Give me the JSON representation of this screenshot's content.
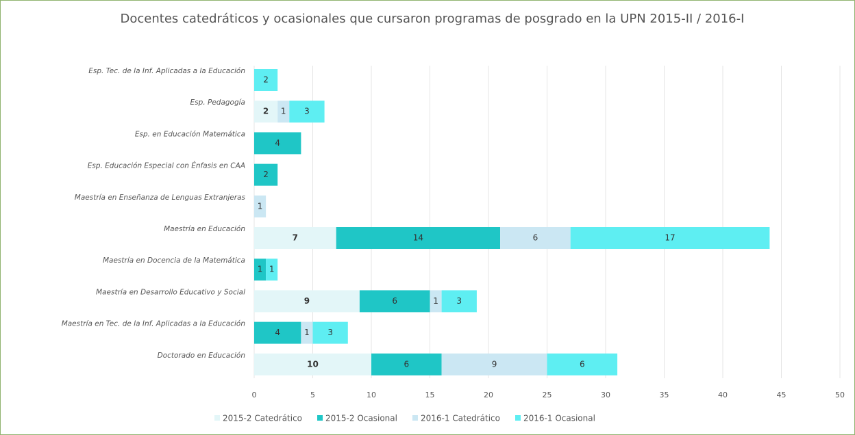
{
  "chart_data": {
    "type": "stacked-bar-horizontal",
    "title": "Docentes catedráticos y ocasionales que cursaron programas de posgrado en la UPN 2015-II / 2016-I",
    "categories": [
      "Esp. Tec. de la Inf. Aplicadas a la Educación",
      "Esp. Pedagogía",
      "Esp. en Educación Matemática",
      "Esp. Educación Especial con Énfasis en CAA",
      "Maestría en Enseñanza de Lenguas Extranjeras",
      "Maestría en Educación",
      "Maestría en Docencia de la Matemática",
      "Maestría en Desarrollo Educativo y Social",
      "Maestría  en Tec. de la Inf. Aplicadas a la Educación",
      "Doctorado en Educación"
    ],
    "series": [
      {
        "name": "2015-2 Catedrático",
        "color": "#e3f6f8",
        "values": [
          null,
          2,
          null,
          null,
          null,
          7,
          null,
          9,
          null,
          10
        ]
      },
      {
        "name": "2015-2 Ocasional",
        "color": "#1fc6c6",
        "values": [
          null,
          null,
          4,
          2,
          null,
          14,
          1,
          6,
          4,
          6
        ]
      },
      {
        "name": "2016-1 Catedrático",
        "color": "#cbe7f3",
        "values": [
          null,
          1,
          null,
          null,
          1,
          6,
          null,
          1,
          1,
          9
        ]
      },
      {
        "name": "2016-1 Ocasional",
        "color": "#5eeef2",
        "values": [
          2,
          3,
          null,
          null,
          null,
          17,
          1,
          3,
          3,
          6
        ]
      }
    ],
    "xlim": [
      0,
      50
    ],
    "xticks": [
      0,
      5,
      10,
      15,
      20,
      25,
      30,
      35,
      40,
      45,
      50
    ],
    "grid": true,
    "legend": "bottom"
  }
}
